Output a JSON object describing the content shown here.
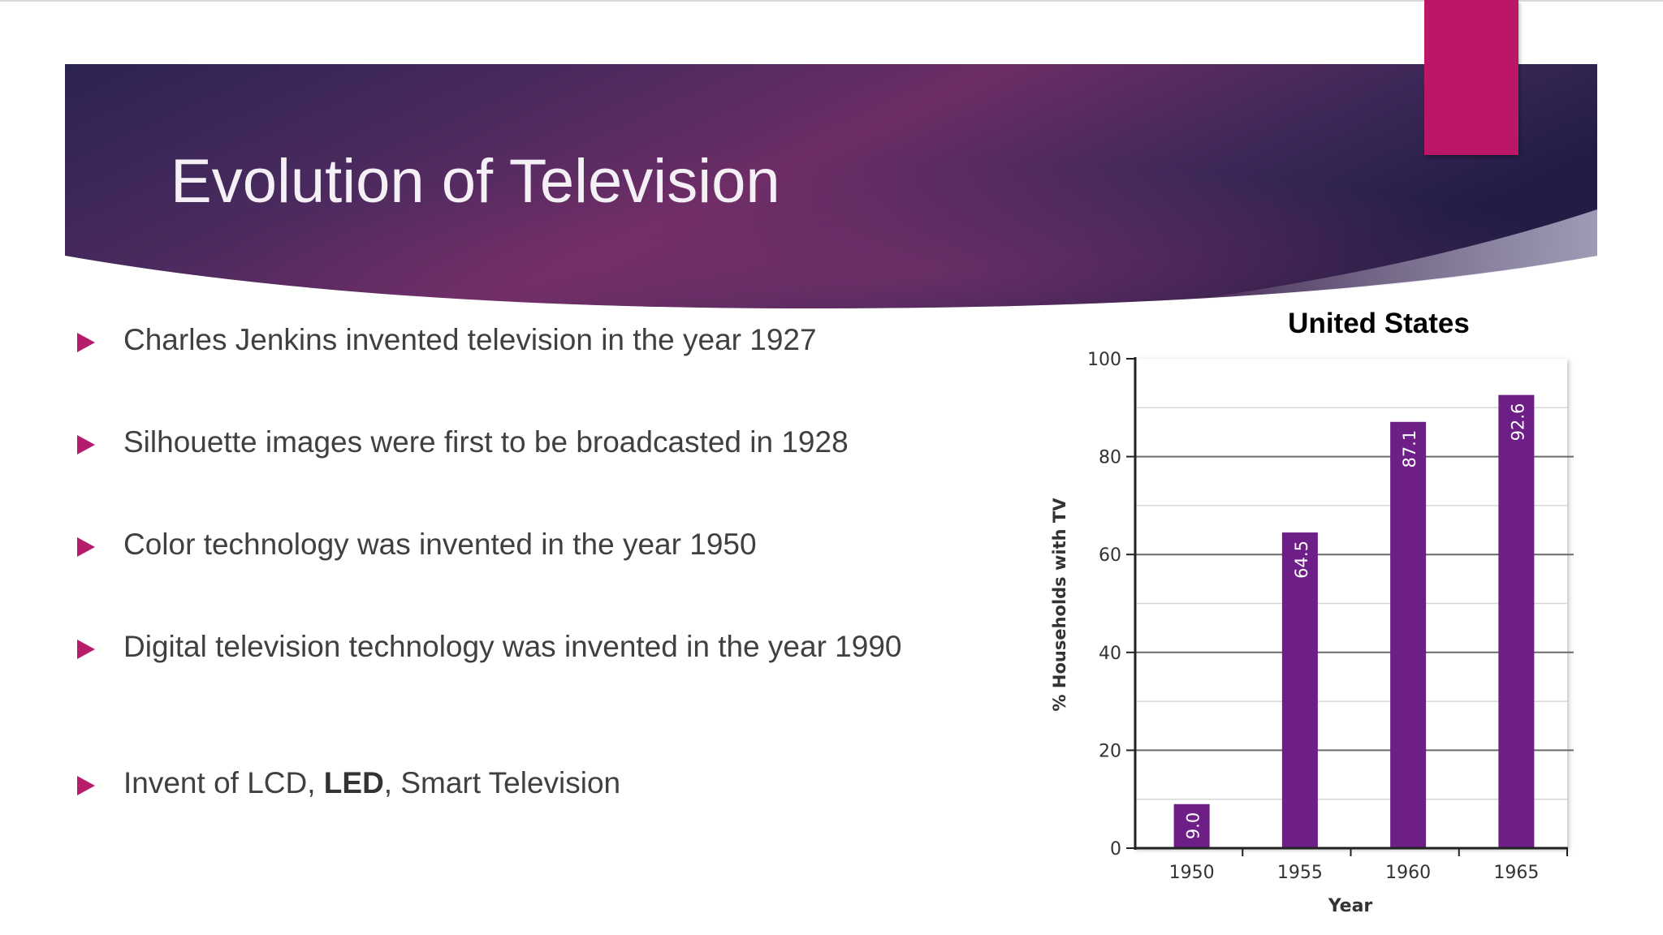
{
  "slide": {
    "title": "Evolution of Television",
    "colors": {
      "header_dark": "#2a1f4e",
      "header_mid": "#6a2a66",
      "accent": "#bb1766",
      "bullet": "#b51c6c",
      "bar": "#6e1f87"
    }
  },
  "bullets": [
    {
      "text": "Charles Jenkins invented television in the year 1927"
    },
    {
      "text": "Silhouette images were first to be broadcasted in 1928"
    },
    {
      "text": "Color technology was invented in the year 1950"
    },
    {
      "text": "Digital television technology was invented in the year 1990"
    },
    {
      "text_before": "Invent of LCD, ",
      "text_bold": "LED",
      "text_after": ", Smart Television"
    }
  ],
  "chart_data": {
    "type": "bar",
    "title": "United States",
    "xlabel": "Year",
    "ylabel": "% Households with TV",
    "categories": [
      "1950",
      "1955",
      "1960",
      "1965"
    ],
    "values": [
      9.0,
      64.5,
      87.1,
      92.6
    ],
    "value_labels": [
      "9.0",
      "64.5",
      "87.1",
      "92.6"
    ],
    "ylim": [
      0,
      100
    ],
    "yticks": [
      "0",
      "20",
      "40",
      "60",
      "80",
      "100"
    ],
    "grid": true,
    "bar_color": "#6e1f87"
  }
}
